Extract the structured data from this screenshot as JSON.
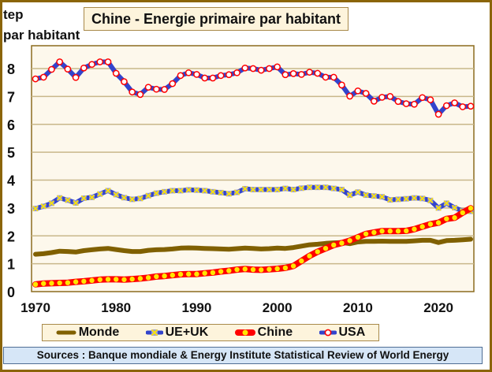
{
  "chart_data": {
    "type": "line",
    "title": "Chine - Energie primaire par habitant",
    "ylabel": "tep par habitant",
    "ylabel_lines": [
      "tep",
      "par habitant"
    ],
    "xlabel": "",
    "xlim": [
      1970,
      2024
    ],
    "ylim": [
      0,
      8.7
    ],
    "yticks": [
      "0",
      "1",
      "2",
      "3",
      "4",
      "5",
      "6",
      "7",
      "8"
    ],
    "xticks": [
      "1970",
      "1980",
      "1990",
      "2000",
      "2010",
      "2020"
    ],
    "grid": true,
    "legend_position": "bottom",
    "x": [
      1970,
      1971,
      1972,
      1973,
      1974,
      1975,
      1976,
      1977,
      1978,
      1979,
      1980,
      1981,
      1982,
      1983,
      1984,
      1985,
      1986,
      1987,
      1988,
      1989,
      1990,
      1991,
      1992,
      1993,
      1994,
      1995,
      1996,
      1997,
      1998,
      1999,
      2000,
      2001,
      2002,
      2003,
      2004,
      2005,
      2006,
      2007,
      2008,
      2009,
      2010,
      2011,
      2012,
      2013,
      2014,
      2015,
      2016,
      2017,
      2018,
      2019,
      2020,
      2021,
      2022,
      2023,
      2024
    ],
    "series": [
      {
        "name": "Monde",
        "color": "#806000",
        "marker": "none",
        "values": [
          1.34,
          1.36,
          1.4,
          1.45,
          1.44,
          1.42,
          1.47,
          1.5,
          1.53,
          1.55,
          1.51,
          1.47,
          1.44,
          1.44,
          1.48,
          1.5,
          1.51,
          1.53,
          1.56,
          1.57,
          1.56,
          1.55,
          1.54,
          1.53,
          1.52,
          1.54,
          1.56,
          1.55,
          1.53,
          1.54,
          1.56,
          1.55,
          1.58,
          1.63,
          1.68,
          1.7,
          1.73,
          1.75,
          1.76,
          1.72,
          1.78,
          1.8,
          1.8,
          1.81,
          1.8,
          1.8,
          1.8,
          1.82,
          1.84,
          1.84,
          1.76,
          1.83,
          1.84,
          1.86,
          1.88
        ]
      },
      {
        "name": "UE+UK",
        "color": "#3344CC",
        "marker": "x",
        "marker_color": "#FFE600",
        "values": [
          2.98,
          3.06,
          3.17,
          3.36,
          3.28,
          3.18,
          3.35,
          3.38,
          3.5,
          3.62,
          3.48,
          3.37,
          3.31,
          3.34,
          3.44,
          3.53,
          3.58,
          3.62,
          3.62,
          3.65,
          3.64,
          3.62,
          3.58,
          3.55,
          3.51,
          3.56,
          3.69,
          3.66,
          3.66,
          3.66,
          3.66,
          3.7,
          3.66,
          3.71,
          3.74,
          3.74,
          3.74,
          3.7,
          3.66,
          3.46,
          3.57,
          3.46,
          3.43,
          3.4,
          3.29,
          3.31,
          3.33,
          3.36,
          3.34,
          3.27,
          3.0,
          3.17,
          3.01,
          2.89,
          2.88
        ]
      },
      {
        "name": "Chine",
        "color": "#FF0000",
        "marker": "circle",
        "marker_color": "#FFE600",
        "values": [
          0.26,
          0.29,
          0.3,
          0.31,
          0.32,
          0.35,
          0.37,
          0.4,
          0.43,
          0.44,
          0.44,
          0.43,
          0.45,
          0.47,
          0.5,
          0.54,
          0.56,
          0.59,
          0.62,
          0.63,
          0.63,
          0.66,
          0.68,
          0.72,
          0.75,
          0.79,
          0.81,
          0.79,
          0.78,
          0.8,
          0.82,
          0.85,
          0.92,
          1.1,
          1.28,
          1.43,
          1.55,
          1.67,
          1.74,
          1.83,
          1.95,
          2.07,
          2.12,
          2.17,
          2.17,
          2.17,
          2.18,
          2.24,
          2.33,
          2.42,
          2.47,
          2.61,
          2.65,
          2.83,
          2.99
        ]
      },
      {
        "name": "USA",
        "color": "#3344CC",
        "marker": "circle",
        "marker_color": "#FFFFFF",
        "marker_edge": "#FF0000",
        "values": [
          7.63,
          7.69,
          7.97,
          8.24,
          7.98,
          7.68,
          8.02,
          8.15,
          8.24,
          8.24,
          7.83,
          7.53,
          7.16,
          7.07,
          7.33,
          7.26,
          7.25,
          7.46,
          7.75,
          7.85,
          7.79,
          7.66,
          7.66,
          7.75,
          7.78,
          7.85,
          8.02,
          8.0,
          7.94,
          8.0,
          8.06,
          7.78,
          7.82,
          7.79,
          7.87,
          7.83,
          7.69,
          7.69,
          7.41,
          7.01,
          7.2,
          7.11,
          6.83,
          6.97,
          7.0,
          6.82,
          6.74,
          6.72,
          6.96,
          6.88,
          6.36,
          6.67,
          6.77,
          6.63,
          6.65
        ]
      }
    ],
    "sources": "Sources : Banque mondiale & Energy Institute Statistical Review of World Energy"
  },
  "colors": {
    "frame": "#8B6508",
    "plot_background": "#FDF8EC",
    "gridline": "#C8B78A",
    "title_background": "#FDF4DC",
    "sources_background": "#D6E6F7"
  }
}
